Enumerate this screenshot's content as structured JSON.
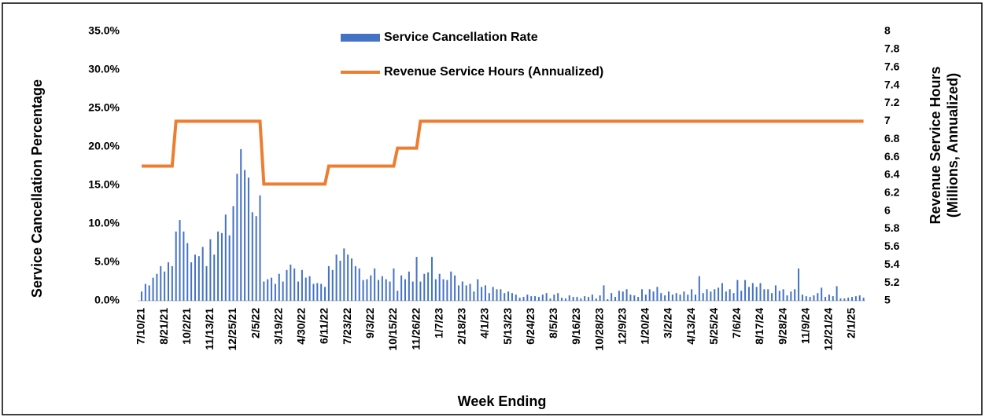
{
  "chart_data": {
    "type": "bar_line",
    "ylabel": "Service Cancellation Percentage",
    "y2label": [
      "Revenue Service Hours",
      "(Millions, Annualized)"
    ],
    "xlabel": "Week Ending",
    "legend": "top",
    "categories": [
      "7/10/21",
      null,
      null,
      null,
      null,
      null,
      "8/21/21",
      null,
      null,
      null,
      null,
      null,
      "10/2/21",
      null,
      null,
      null,
      null,
      null,
      "11/13/21",
      null,
      null,
      null,
      null,
      null,
      "12/25/21",
      null,
      null,
      null,
      null,
      null,
      "2/5/22",
      null,
      null,
      null,
      null,
      null,
      "3/19/22",
      null,
      null,
      null,
      null,
      null,
      "4/30/22",
      null,
      null,
      null,
      null,
      null,
      "6/11/22",
      null,
      null,
      null,
      null,
      null,
      "7/23/22",
      null,
      null,
      null,
      null,
      null,
      "9/3/22",
      null,
      null,
      null,
      null,
      null,
      "10/15/22",
      null,
      null,
      null,
      null,
      null,
      "11/26/22",
      null,
      null,
      null,
      null,
      null,
      "1/7/23",
      null,
      null,
      null,
      null,
      null,
      "2/18/23",
      null,
      null,
      null,
      null,
      null,
      "4/1/23",
      null,
      null,
      null,
      null,
      null,
      "5/13/23",
      null,
      null,
      null,
      null,
      null,
      "6/24/23",
      null,
      null,
      null,
      null,
      null,
      "8/5/23",
      null,
      null,
      null,
      null,
      null,
      "9/16/23",
      null,
      null,
      null,
      null,
      null,
      "10/28/23",
      null,
      null,
      null,
      null,
      null,
      "12/9/23",
      null,
      null,
      null,
      null,
      null,
      "1/20/24",
      null,
      null,
      null,
      null,
      null,
      "3/2/24",
      null,
      null,
      null,
      null,
      null,
      "4/13/24",
      null,
      null,
      null,
      null,
      null,
      "5/25/24",
      null,
      null,
      null,
      null,
      null,
      "7/6/24",
      null,
      null,
      null,
      null,
      null,
      "8/17/24",
      null,
      null,
      null,
      null,
      null,
      "9/28/24",
      null,
      null,
      null,
      null,
      null,
      "11/9/24",
      null,
      null,
      null,
      null,
      null,
      "12/21/24",
      null,
      null,
      null,
      null,
      null,
      "2/1/25",
      null,
      null,
      null
    ],
    "series": [
      {
        "name": "Service Cancellation Rate",
        "kind": "bar",
        "color": "#4472c4",
        "values": [
          1.2,
          2.2,
          2.0,
          3.0,
          3.5,
          4.5,
          3.8,
          5.0,
          4.5,
          9.0,
          10.5,
          9.0,
          7.5,
          5.0,
          6.0,
          5.8,
          7.0,
          4.5,
          8.0,
          6.0,
          9.0,
          8.8,
          11.2,
          8.5,
          12.3,
          16.5,
          19.7,
          17.0,
          16.0,
          11.5,
          11.0,
          13.7,
          2.5,
          2.8,
          3.0,
          2.2,
          3.5,
          2.5,
          4.0,
          4.7,
          4.2,
          2.5,
          4.0,
          3.0,
          3.2,
          2.2,
          2.3,
          2.2,
          1.8,
          4.5,
          4.0,
          6.0,
          5.2,
          6.8,
          6.0,
          5.5,
          4.5,
          4.2,
          2.7,
          2.8,
          3.3,
          4.2,
          2.7,
          3.2,
          2.8,
          2.5,
          4.2,
          1.3,
          3.3,
          2.8,
          3.8,
          2.5,
          5.7,
          2.5,
          3.5,
          3.7,
          5.7,
          2.8,
          3.5,
          2.8,
          2.7,
          3.8,
          3.3,
          2.0,
          2.5,
          2.0,
          2.2,
          1.2,
          2.8,
          1.8,
          2.0,
          1.0,
          1.8,
          1.5,
          1.5,
          1.0,
          1.2,
          1.0,
          0.8,
          0.4,
          0.5,
          0.8,
          0.6,
          0.6,
          0.5,
          0.8,
          1.0,
          0.3,
          0.8,
          1.0,
          0.4,
          0.3,
          0.7,
          0.5,
          0.5,
          0.3,
          0.6,
          0.5,
          0.8,
          0.3,
          0.7,
          2.0,
          0.2,
          1.0,
          0.5,
          1.3,
          1.2,
          1.5,
          0.8,
          0.7,
          0.5,
          1.5,
          0.8,
          1.5,
          1.2,
          1.8,
          1.0,
          0.7,
          1.2,
          0.8,
          1.0,
          0.8,
          1.2,
          0.8,
          1.5,
          0.8,
          3.2,
          1.0,
          1.5,
          1.2,
          1.5,
          1.7,
          2.3,
          1.2,
          1.5,
          1.0,
          2.7,
          1.3,
          2.7,
          1.8,
          2.3,
          1.8,
          2.3,
          1.5,
          1.5,
          1.0,
          2.0,
          1.3,
          1.5,
          0.7,
          1.2,
          1.5,
          4.2,
          0.8,
          0.6,
          0.5,
          0.7,
          1.0,
          1.7,
          0.5,
          0.8,
          0.6,
          1.9,
          0.3,
          0.3,
          0.4,
          0.5,
          0.6,
          0.7,
          0.4
        ]
      },
      {
        "name": "Revenue Service Hours (Annualized)",
        "kind": "line",
        "axis": "y2",
        "color": "#ed7d31",
        "values": [
          6.5,
          6.5,
          6.5,
          6.5,
          6.5,
          6.5,
          6.5,
          6.5,
          6.5,
          7,
          7,
          7,
          7,
          7,
          7,
          7,
          7,
          7,
          7,
          7,
          7,
          7,
          7,
          7,
          7,
          7,
          7,
          7,
          7,
          7,
          7,
          7,
          6.3,
          6.3,
          6.3,
          6.3,
          6.3,
          6.3,
          6.3,
          6.3,
          6.3,
          6.3,
          6.3,
          6.3,
          6.3,
          6.3,
          6.3,
          6.3,
          6.3,
          6.5,
          6.5,
          6.5,
          6.5,
          6.5,
          6.5,
          6.5,
          6.5,
          6.5,
          6.5,
          6.5,
          6.5,
          6.5,
          6.5,
          6.5,
          6.5,
          6.5,
          6.5,
          6.7,
          6.7,
          6.7,
          6.7,
          6.7,
          6.7,
          7,
          7,
          7,
          7,
          7,
          7,
          7,
          7,
          7,
          7,
          7,
          7,
          7,
          7,
          7,
          7,
          7,
          7,
          7,
          7,
          7,
          7,
          7,
          7,
          7,
          7,
          7,
          7,
          7,
          7,
          7,
          7,
          7,
          7,
          7,
          7,
          7,
          7,
          7,
          7,
          7,
          7,
          7,
          7,
          7,
          7,
          7,
          7,
          7,
          7,
          7,
          7,
          7,
          7,
          7,
          7,
          7,
          7,
          7,
          7,
          7,
          7,
          7,
          7,
          7,
          7,
          7,
          7,
          7,
          7,
          7,
          7,
          7,
          7,
          7,
          7,
          7,
          7,
          7,
          7,
          7,
          7,
          7,
          7,
          7,
          7,
          7,
          7,
          7,
          7,
          7,
          7,
          7,
          7,
          7,
          7,
          7,
          7,
          7,
          7,
          7,
          7,
          7,
          7,
          7,
          7,
          7,
          7,
          7,
          7,
          7,
          7,
          7,
          7,
          7,
          7,
          7
        ]
      }
    ],
    "ylim": [
      0,
      35
    ],
    "yticks": [
      {
        "value": 0,
        "label": "0.0%"
      },
      {
        "value": 5,
        "label": "5.0%"
      },
      {
        "value": 10,
        "label": "10.0%"
      },
      {
        "value": 15,
        "label": "15.0%"
      },
      {
        "value": 20,
        "label": "20.0%"
      },
      {
        "value": 25,
        "label": "25.0%"
      },
      {
        "value": 30,
        "label": "30.0%"
      },
      {
        "value": 35,
        "label": "35.0%"
      }
    ],
    "y2lim": [
      5,
      8
    ],
    "y2ticks": [
      5,
      5.2,
      5.4,
      5.6,
      5.8,
      6,
      6.2,
      6.4,
      6.6,
      6.8,
      7,
      7.2,
      7.4,
      7.6,
      7.8,
      8
    ]
  }
}
